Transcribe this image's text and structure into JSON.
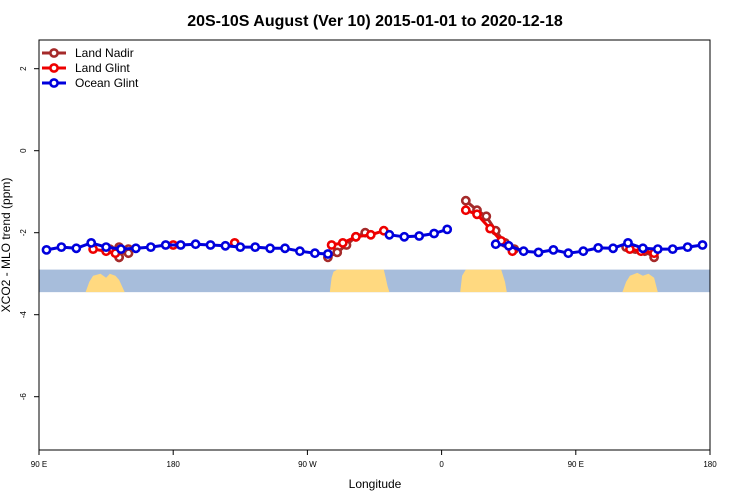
{
  "chart_data": {
    "type": "line",
    "title": "20S-10S August (Ver 10)   2015-01-01 to 2020-12-18",
    "xlabel": "Longitude",
    "ylabel": "XCO2 - MLO trend (ppm)",
    "xlim": [
      0,
      360
    ],
    "ylim": [
      -7.3,
      2.7
    ],
    "x_ticks": [
      {
        "value": 0,
        "label": "90 E"
      },
      {
        "value": 72,
        "label": "180"
      },
      {
        "value": 144,
        "label": "90 W"
      },
      {
        "value": 216,
        "label": "0"
      },
      {
        "value": 288,
        "label": "90 E"
      },
      {
        "value": 360,
        "label": "180"
      }
    ],
    "y_ticks": [
      {
        "value": 2,
        "label": "2"
      },
      {
        "value": 0,
        "label": "0"
      },
      {
        "value": -2,
        "label": "-2"
      },
      {
        "value": -4,
        "label": "-4"
      },
      {
        "value": -6,
        "label": "-6"
      }
    ],
    "grid": false,
    "legend_position": "top-left",
    "series": [
      {
        "name": "Land Nadir",
        "color": "#a52a2a",
        "segments": [
          [
            [
              38,
              -2.4
            ],
            [
              43,
              -2.4
            ],
            [
              48,
              -2.4
            ],
            [
              43,
              -2.45
            ],
            [
              43,
              -2.38
            ],
            [
              48,
              -2.5
            ],
            [
              43,
              -2.35
            ],
            [
              43,
              -2.48
            ],
            [
              43,
              -2.42
            ],
            [
              43,
              -2.5
            ],
            [
              43,
              -2.6
            ],
            [
              43,
              -2.6
            ]
          ],
          [
            [
              155,
              -2.6
            ],
            [
              160,
              -2.48
            ],
            [
              165,
              -2.3
            ],
            [
              170,
              -2.1
            ],
            [
              175,
              -2.0
            ]
          ],
          [
            [
              229,
              -1.22
            ],
            [
              235,
              -1.45
            ],
            [
              240,
              -1.6
            ],
            [
              245,
              -1.95
            ],
            [
              250,
              -2.25
            ],
            [
              255,
              -2.4
            ]
          ],
          [
            [
              315,
              -2.35
            ],
            [
              320,
              -2.4
            ],
            [
              325,
              -2.45
            ],
            [
              330,
              -2.6
            ]
          ]
        ]
      },
      {
        "name": "Land Glint",
        "color": "#ee0000",
        "segments": [
          [
            [
              29,
              -2.4
            ],
            [
              36,
              -2.45
            ],
            [
              41,
              -2.5
            ]
          ],
          [
            [
              72,
              -2.3
            ]
          ],
          [
            [
              105,
              -2.25
            ]
          ],
          [
            [
              157,
              -2.3
            ],
            [
              163,
              -2.25
            ],
            [
              170,
              -2.1
            ],
            [
              178,
              -2.05
            ],
            [
              185,
              -1.95
            ]
          ],
          [
            [
              229,
              -1.45
            ],
            [
              235,
              -1.55
            ],
            [
              242,
              -1.9
            ],
            [
              248,
              -2.2
            ],
            [
              254,
              -2.45
            ]
          ],
          [
            [
              317,
              -2.4
            ],
            [
              323,
              -2.45
            ],
            [
              330,
              -2.5
            ]
          ]
        ]
      },
      {
        "name": "Ocean Glint",
        "color": "#0000dd",
        "segments": [
          [
            [
              4,
              -2.42
            ],
            [
              12,
              -2.35
            ],
            [
              20,
              -2.38
            ],
            [
              28,
              -2.25
            ],
            [
              36,
              -2.35
            ],
            [
              44,
              -2.4
            ],
            [
              52,
              -2.38
            ],
            [
              60,
              -2.35
            ],
            [
              68,
              -2.3
            ],
            [
              76,
              -2.3
            ],
            [
              84,
              -2.28
            ],
            [
              92,
              -2.3
            ],
            [
              100,
              -2.32
            ],
            [
              108,
              -2.35
            ],
            [
              116,
              -2.35
            ],
            [
              124,
              -2.38
            ],
            [
              132,
              -2.38
            ],
            [
              140,
              -2.45
            ],
            [
              148,
              -2.5
            ],
            [
              155,
              -2.52
            ]
          ],
          [
            [
              188,
              -2.05
            ],
            [
              196,
              -2.1
            ],
            [
              204,
              -2.08
            ],
            [
              212,
              -2.02
            ],
            [
              219,
              -1.92
            ]
          ],
          [
            [
              245,
              -2.28
            ],
            [
              252,
              -2.32
            ],
            [
              260,
              -2.45
            ],
            [
              268,
              -2.48
            ],
            [
              276,
              -2.42
            ],
            [
              284,
              -2.5
            ],
            [
              292,
              -2.45
            ],
            [
              300,
              -2.37
            ],
            [
              308,
              -2.38
            ],
            [
              316,
              -2.25
            ],
            [
              324,
              -2.38
            ],
            [
              332,
              -2.4
            ],
            [
              340,
              -2.4
            ],
            [
              348,
              -2.35
            ],
            [
              356,
              -2.3
            ]
          ]
        ]
      }
    ],
    "land_band": {
      "y_top": -2.9,
      "y_bottom": -3.45,
      "ocean_color": "#a7bddb",
      "land_color": "#ffd980",
      "land_regions": [
        [
          [
            25,
            -3.45
          ],
          [
            27,
            -3.2
          ],
          [
            29,
            -3.05
          ],
          [
            33,
            -3.0
          ],
          [
            36,
            -3.1
          ],
          [
            38,
            -3.0
          ],
          [
            41,
            -3.05
          ],
          [
            43,
            -3.15
          ],
          [
            46,
            -3.45
          ]
        ],
        [
          [
            156,
            -3.45
          ],
          [
            157,
            -3.1
          ],
          [
            158,
            -2.95
          ],
          [
            160,
            -2.9
          ],
          [
            185,
            -2.9
          ],
          [
            186,
            -3.1
          ],
          [
            187,
            -3.3
          ],
          [
            188,
            -3.45
          ]
        ],
        [
          [
            226,
            -3.45
          ],
          [
            227,
            -3.05
          ],
          [
            229,
            -2.9
          ],
          [
            248,
            -2.9
          ],
          [
            249,
            -3.05
          ],
          [
            250,
            -3.2
          ],
          [
            251,
            -3.45
          ]
        ],
        [
          [
            313,
            -3.45
          ],
          [
            315,
            -3.2
          ],
          [
            317,
            -3.05
          ],
          [
            321,
            -2.98
          ],
          [
            324,
            -3.05
          ],
          [
            327,
            -3.0
          ],
          [
            330,
            -3.1
          ],
          [
            332,
            -3.45
          ]
        ]
      ]
    }
  }
}
